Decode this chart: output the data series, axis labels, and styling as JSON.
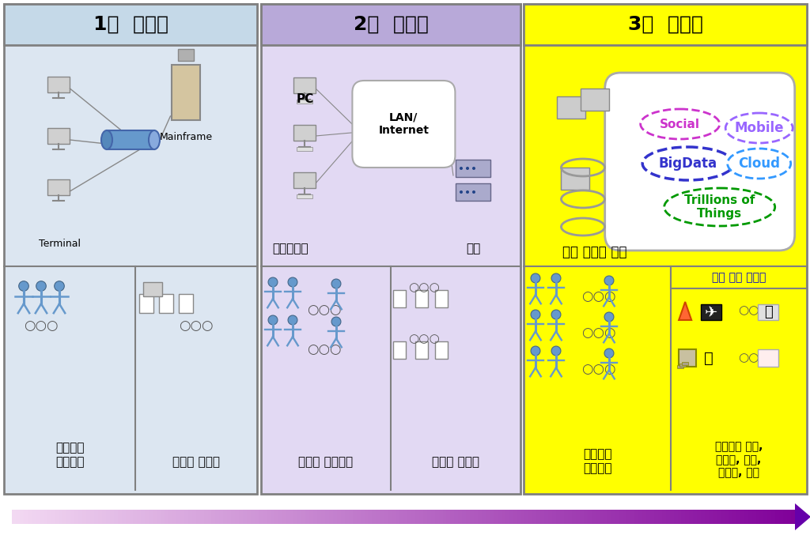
{
  "title_1": "1차  플랫폼",
  "title_2": "2차  플랫폼",
  "title_3": "3차  플랫폼",
  "col1_bg": "#dce6f1",
  "col2_bg": "#e2d9f3",
  "col3_bg": "#ffff00",
  "title_bg1": "#c5d9e8",
  "title_bg2": "#b8a9d9",
  "title_bg3": "#ffff00",
  "border_color": "#808080",
  "text_terminal": "Terminal",
  "text_mainframe": "Mainframe",
  "text_pc": "PC",
  "text_lan": "LAN/\nInternet",
  "text_client": "클라이언트",
  "text_server": "서버",
  "text_devices": "모든 장치와 응용",
  "text_social": "Social",
  "text_mobile": "Mobile",
  "text_bigdata": "BigData",
  "text_cloud": "Cloud",
  "text_trillions": "Trillions of\nThings",
  "text_knowledge": "지식 산업 솔루션",
  "label_col1_left": "수백만명\n사용자들",
  "label_col1_right": "수천개 응용들",
  "label_col2_left": "수억명 사용자들",
  "label_col2_right": "수만개 응용들",
  "label_col3_left": "수십억명\n사용자들",
  "label_col3_right": "수백만개 응용,\n서비스, 정보,\n콘텐츠, 경험",
  "arrow_color1": "#7030a0",
  "arrow_color2": "#cc99ff",
  "social_color": "#cc33cc",
  "mobile_color": "#9966ff",
  "bigdata_color": "#3333cc",
  "cloud_color": "#3399ff",
  "trillions_color": "#009900",
  "knowledge_color": "#0000cc",
  "fig_bg": "#ffffff"
}
